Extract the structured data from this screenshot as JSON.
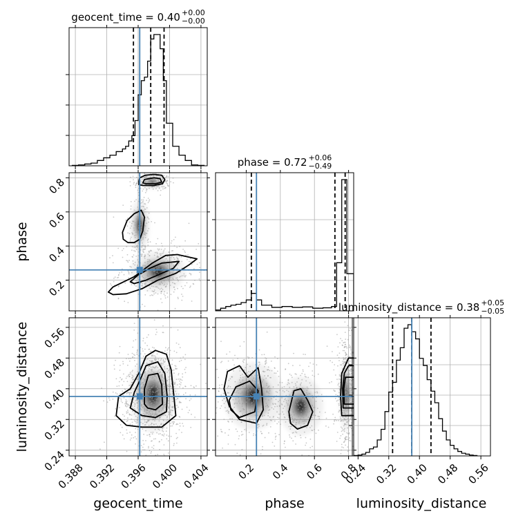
{
  "colors": {
    "truth": "#4682b4",
    "hist": "#000000",
    "grid": "#b0b0b0",
    "scatter": "#9a9a9a"
  },
  "chart_data": {
    "type": "corner",
    "parameters": [
      "geocent_time",
      "phase",
      "luminosity_distance"
    ],
    "truths": {
      "geocent_time": 0.3962,
      "phase": 0.26,
      "luminosity_distance": 0.38
    },
    "titles": [
      {
        "param": "geocent_time",
        "text": "geocent_time = 0.40",
        "plus": "+0.00",
        "minus": "−0.00"
      },
      {
        "param": "phase",
        "text": "phase = 0.72",
        "plus": "+0.06",
        "minus": "−0.49"
      },
      {
        "param": "luminosity_distance",
        "text": "luminosity_distance = 0.38",
        "plus": "+0.05",
        "minus": "−0.05"
      }
    ],
    "axes": {
      "geocent_time": {
        "range": [
          0.3872,
          0.4048
        ],
        "ticks": [
          "0.388",
          "0.392",
          "0.396",
          "0.400",
          "0.404"
        ],
        "tick_values": [
          0.388,
          0.392,
          0.396,
          0.4,
          0.404
        ]
      },
      "phase": {
        "range": [
          0.02,
          0.83
        ],
        "ticks": [
          "0.2",
          "0.4",
          "0.6",
          "0.8"
        ],
        "tick_values": [
          0.2,
          0.4,
          0.6,
          0.8
        ]
      },
      "luminosity_distance": {
        "range": [
          0.225,
          0.585
        ],
        "ticks": [
          "0.24",
          "0.32",
          "0.40",
          "0.48",
          "0.56"
        ],
        "tick_values": [
          0.24,
          0.32,
          0.4,
          0.48,
          0.56
        ]
      }
    },
    "quantiles": {
      "geocent_time": [
        0.3954,
        0.3976,
        0.3993
      ],
      "phase": [
        0.23,
        0.72,
        0.78
      ],
      "luminosity_distance": [
        0.33,
        0.38,
        0.43
      ]
    },
    "histograms": {
      "geocent_time": {
        "edges": [
          0.3876,
          0.3884,
          0.3892,
          0.39,
          0.3908,
          0.3916,
          0.3924,
          0.3932,
          0.394,
          0.3944,
          0.3948,
          0.3952,
          0.3956,
          0.396,
          0.3964,
          0.3968,
          0.3972,
          0.3976,
          0.398,
          0.3984,
          0.3988,
          0.3992,
          0.3996,
          0.4004,
          0.4012,
          0.402,
          0.4028,
          0.4036,
          0.4044
        ],
        "counts": [
          0.5,
          1,
          2,
          3,
          6,
          9,
          12,
          16,
          19,
          22,
          28,
          34,
          51,
          80,
          96,
          100,
          118,
          143,
          148,
          148,
          132,
          96,
          48,
          22,
          12,
          6,
          1,
          0.5
        ]
      },
      "phase": {
        "edges": [
          0.02,
          0.05,
          0.08,
          0.11,
          0.14,
          0.17,
          0.2,
          0.23,
          0.26,
          0.29,
          0.35,
          0.41,
          0.47,
          0.53,
          0.59,
          0.65,
          0.7,
          0.73,
          0.76,
          0.79,
          0.83
        ],
        "counts": [
          2,
          6,
          10,
          13,
          15,
          19,
          25,
          40,
          25,
          13,
          8,
          10,
          8,
          9,
          6,
          7,
          10,
          110,
          300,
          85
        ]
      },
      "luminosity_distance": {
        "edges": [
          0.23,
          0.24,
          0.25,
          0.26,
          0.27,
          0.28,
          0.29,
          0.3,
          0.31,
          0.32,
          0.33,
          0.34,
          0.35,
          0.36,
          0.37,
          0.38,
          0.39,
          0.4,
          0.41,
          0.42,
          0.43,
          0.44,
          0.45,
          0.46,
          0.47,
          0.48,
          0.49,
          0.5,
          0.51,
          0.52,
          0.53,
          0.54,
          0.55
        ],
        "counts": [
          0.5,
          1,
          2,
          4,
          8,
          10,
          18,
          30,
          50,
          72,
          83,
          108,
          122,
          144,
          148,
          140,
          132,
          110,
          102,
          86,
          73,
          60,
          42,
          28,
          18,
          12,
          8,
          5,
          3,
          2,
          1,
          0.5
        ]
      }
    },
    "blobs": {
      "geocent_time|phase": [
        {
          "cx": 0.3962,
          "cy": 0.52,
          "sx": 0.00055,
          "sy": 0.07,
          "n": 170
        },
        {
          "cx": 0.3978,
          "cy": 0.776,
          "sx": 0.00075,
          "sy": 0.018,
          "n": 230
        },
        {
          "cx": 0.3985,
          "cy": 0.25,
          "sx": 0.0016,
          "sy": 0.055,
          "n": 500
        }
      ],
      "geocent_time|luminosity_distance": [
        {
          "cx": 0.3979,
          "cy": 0.385,
          "sx": 0.0014,
          "sy": 0.045,
          "n": 1100
        }
      ],
      "phase|luminosity_distance": [
        {
          "cx": 0.24,
          "cy": 0.38,
          "sx": 0.08,
          "sy": 0.04,
          "n": 500
        },
        {
          "cx": 0.52,
          "cy": 0.355,
          "sx": 0.06,
          "sy": 0.035,
          "n": 260
        },
        {
          "cx": 0.785,
          "cy": 0.385,
          "sx": 0.018,
          "sy": 0.045,
          "n": 460
        }
      ]
    },
    "contours": {
      "geocent_time|phase": [
        [
          [
            0.394,
            0.48
          ],
          [
            0.3946,
            0.55
          ],
          [
            0.3955,
            0.59
          ],
          [
            0.3964,
            0.61
          ],
          [
            0.3968,
            0.57
          ],
          [
            0.3966,
            0.49
          ],
          [
            0.3962,
            0.44
          ],
          [
            0.3955,
            0.42
          ],
          [
            0.3947,
            0.42
          ],
          [
            0.3941,
            0.44
          ]
        ],
        [
          [
            0.3961,
            0.78
          ],
          [
            0.3962,
            0.8
          ],
          [
            0.3969,
            0.815
          ],
          [
            0.398,
            0.82
          ],
          [
            0.399,
            0.815
          ],
          [
            0.3994,
            0.79
          ],
          [
            0.3991,
            0.765
          ],
          [
            0.398,
            0.755
          ],
          [
            0.3966,
            0.755
          ],
          [
            0.3961,
            0.76
          ]
        ],
        [
          [
            0.3966,
            0.77
          ],
          [
            0.3968,
            0.79
          ],
          [
            0.398,
            0.8
          ],
          [
            0.3988,
            0.795
          ],
          [
            0.399,
            0.775
          ],
          [
            0.3982,
            0.765
          ],
          [
            0.397,
            0.765
          ]
        ],
        [
          [
            0.3922,
            0.13
          ],
          [
            0.3928,
            0.16
          ],
          [
            0.3955,
            0.22
          ],
          [
            0.3978,
            0.3
          ],
          [
            0.3995,
            0.345
          ],
          [
            0.401,
            0.35
          ],
          [
            0.4035,
            0.325
          ],
          [
            0.4025,
            0.29
          ],
          [
            0.4008,
            0.24
          ],
          [
            0.3985,
            0.2
          ],
          [
            0.3965,
            0.15
          ],
          [
            0.3945,
            0.12
          ],
          [
            0.3928,
            0.115
          ]
        ],
        [
          [
            0.395,
            0.19
          ],
          [
            0.396,
            0.23
          ],
          [
            0.3975,
            0.27
          ],
          [
            0.399,
            0.3
          ],
          [
            0.4012,
            0.31
          ],
          [
            0.4005,
            0.27
          ],
          [
            0.399,
            0.24
          ],
          [
            0.397,
            0.2
          ],
          [
            0.3955,
            0.18
          ]
        ]
      ],
      "geocent_time|luminosity_distance": [
        [
          [
            0.3932,
            0.33
          ],
          [
            0.3935,
            0.38
          ],
          [
            0.395,
            0.4
          ],
          [
            0.3962,
            0.445
          ],
          [
            0.397,
            0.485
          ],
          [
            0.3982,
            0.5
          ],
          [
            0.3996,
            0.49
          ],
          [
            0.4002,
            0.45
          ],
          [
            0.4006,
            0.37
          ],
          [
            0.4008,
            0.33
          ],
          [
            0.399,
            0.3
          ],
          [
            0.3965,
            0.3
          ],
          [
            0.3945,
            0.305
          ]
        ],
        [
          [
            0.395,
            0.35
          ],
          [
            0.3955,
            0.39
          ],
          [
            0.3964,
            0.43
          ],
          [
            0.397,
            0.46
          ],
          [
            0.3985,
            0.47
          ],
          [
            0.3994,
            0.44
          ],
          [
            0.3997,
            0.38
          ],
          [
            0.3996,
            0.34
          ],
          [
            0.3982,
            0.325
          ],
          [
            0.3965,
            0.33
          ]
        ],
        [
          [
            0.3968,
            0.36
          ],
          [
            0.3968,
            0.4
          ],
          [
            0.3973,
            0.435
          ],
          [
            0.3985,
            0.44
          ],
          [
            0.399,
            0.41
          ],
          [
            0.3991,
            0.36
          ],
          [
            0.3982,
            0.345
          ],
          [
            0.3972,
            0.35
          ]
        ]
      ],
      "phase|luminosity_distance": [
        [
          [
            0.07,
            0.4
          ],
          [
            0.09,
            0.445
          ],
          [
            0.16,
            0.46
          ],
          [
            0.21,
            0.43
          ],
          [
            0.27,
            0.455
          ],
          [
            0.29,
            0.4
          ],
          [
            0.3,
            0.345
          ],
          [
            0.26,
            0.31
          ],
          [
            0.16,
            0.32
          ],
          [
            0.1,
            0.355
          ]
        ],
        [
          [
            0.1,
            0.37
          ],
          [
            0.14,
            0.405
          ],
          [
            0.22,
            0.42
          ],
          [
            0.27,
            0.395
          ],
          [
            0.25,
            0.34
          ],
          [
            0.16,
            0.325
          ],
          [
            0.11,
            0.345
          ]
        ],
        [
          [
            0.45,
            0.34
          ],
          [
            0.48,
            0.395
          ],
          [
            0.52,
            0.4
          ],
          [
            0.56,
            0.37
          ],
          [
            0.59,
            0.34
          ],
          [
            0.56,
            0.305
          ],
          [
            0.5,
            0.295
          ],
          [
            0.46,
            0.31
          ]
        ],
        [
          [
            0.76,
            0.33
          ],
          [
            0.753,
            0.38
          ],
          [
            0.76,
            0.44
          ],
          [
            0.8,
            0.48
          ],
          [
            0.84,
            0.48
          ],
          [
            0.84,
            0.33
          ]
        ],
        [
          [
            0.768,
            0.35
          ],
          [
            0.765,
            0.4
          ],
          [
            0.775,
            0.44
          ],
          [
            0.8,
            0.46
          ],
          [
            0.84,
            0.46
          ],
          [
            0.84,
            0.35
          ]
        ],
        [
          [
            0.775,
            0.36
          ],
          [
            0.772,
            0.4
          ],
          [
            0.782,
            0.43
          ],
          [
            0.84,
            0.43
          ],
          [
            0.84,
            0.36
          ]
        ]
      ]
    }
  }
}
